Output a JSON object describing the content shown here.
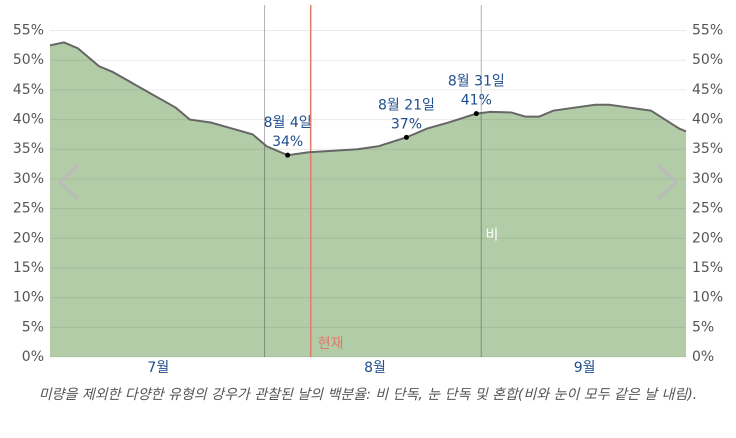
{
  "chart_data": {
    "type": "area",
    "caption": "미량을 제외한 다양한 유형의 강우가 관찰된 날의 백분율: 비 단독, 눈 단독 및 혼합(비와 눈이 모두 같은 날 내림).",
    "x": [
      0,
      2,
      4,
      7,
      9,
      12,
      15,
      18,
      20,
      23,
      26,
      29,
      31,
      34,
      37,
      40,
      44,
      47,
      51,
      54,
      57,
      61,
      63,
      66,
      68,
      70,
      72,
      75,
      78,
      80,
      83,
      86,
      88,
      90,
      91
    ],
    "series": [
      {
        "name": "비",
        "color": "#b3cca8",
        "line_color": "#666666",
        "values": [
          52.5,
          53,
          52,
          49,
          48,
          46,
          44,
          42,
          40,
          39.5,
          38.5,
          37.5,
          35.5,
          34,
          34.5,
          34.7,
          35,
          35.5,
          37,
          38.5,
          39.5,
          41,
          41.3,
          41.2,
          40.5,
          40.5,
          41.5,
          42,
          42.5,
          42.5,
          42,
          41.5,
          40,
          38.5,
          38
        ]
      }
    ],
    "xlim": [
      0,
      91
    ],
    "xticks": [
      {
        "value": 15.5,
        "label": "7월"
      },
      {
        "value": 46.5,
        "label": "8월"
      },
      {
        "value": 76.5,
        "label": "9월"
      }
    ],
    "month_boundaries": [
      30.7,
      61.7
    ],
    "now": {
      "x": 37.3,
      "label": "현재"
    },
    "ylim": [
      0,
      59.3
    ],
    "yticks": [
      {
        "value": 0,
        "label": "0%"
      },
      {
        "value": 5,
        "label": "5%"
      },
      {
        "value": 10,
        "label": "10%"
      },
      {
        "value": 15,
        "label": "15%"
      },
      {
        "value": 20,
        "label": "20%"
      },
      {
        "value": 25,
        "label": "25%"
      },
      {
        "value": 30,
        "label": "30%"
      },
      {
        "value": 35,
        "label": "35%"
      },
      {
        "value": 40,
        "label": "40%"
      },
      {
        "value": 45,
        "label": "45%"
      },
      {
        "value": 50,
        "label": "50%"
      },
      {
        "value": 55,
        "label": "55%"
      }
    ],
    "annotations": [
      {
        "x": 34,
        "value": 34,
        "date": "8월 4일",
        "label": "34%"
      },
      {
        "x": 51,
        "value": 37,
        "date": "8월 21일",
        "label": "37%"
      },
      {
        "x": 61,
        "value": 41,
        "date": "8월 31일",
        "label": "41%"
      }
    ],
    "grid": true
  }
}
